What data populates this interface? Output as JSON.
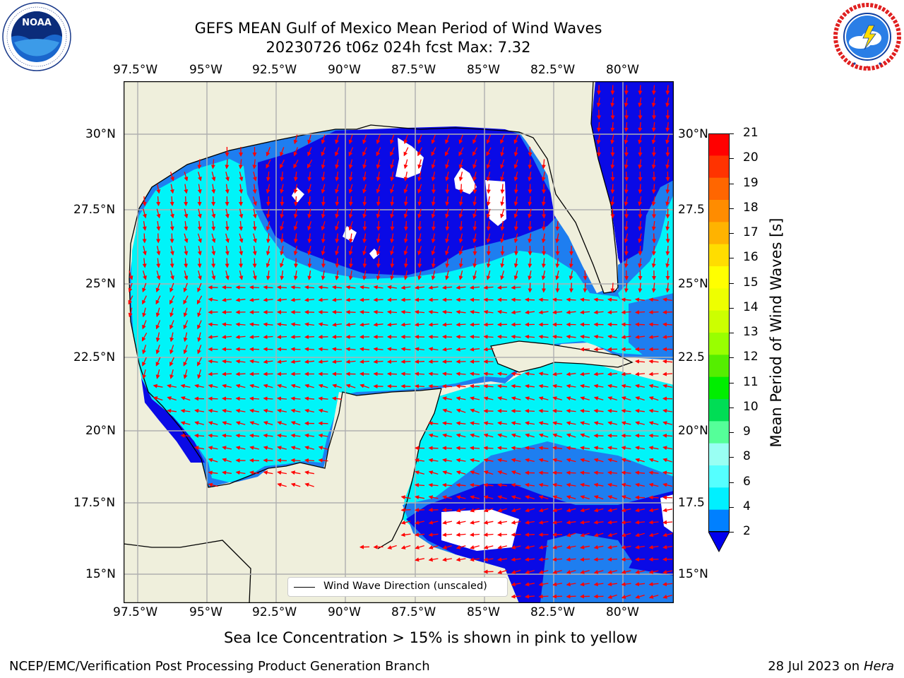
{
  "header": {
    "title_line1": "GEFS MEAN Gulf of Mexico Mean Period of Wind Waves",
    "title_line2": "20230726 t06z 024h fcst   Max: 7.32"
  },
  "logos": {
    "left": {
      "icon": "noaa-logo-icon",
      "text": "NOAA",
      "ring_text": "NATIONAL OCEANIC AND ATMOSPHERIC ADMINISTRATION · U.S. DEPARTMENT OF COMMERCE"
    },
    "right": {
      "icon": "nws-logo-icon",
      "ring_text": "NATIONAL WEATHER SERVICE"
    }
  },
  "map": {
    "lon_labels": [
      "97.5°W",
      "95°W",
      "92.5°W",
      "90°W",
      "87.5°W",
      "85°W",
      "82.5°W",
      "80°W"
    ],
    "lat_labels_left": [
      "30°N",
      "27.5°N",
      "25°N",
      "22.5°N",
      "20°N",
      "17.5°N",
      "15°N"
    ],
    "lat_labels_right": [
      "30°N",
      "27.5",
      "25°N",
      "22.5",
      "20°N",
      "17.5",
      "15°N"
    ],
    "legend_label": "Wind Wave Direction (unscaled)",
    "colors": {
      "land": "#efefdc",
      "ocean_blue": "#0a0ae6",
      "mid_blue": "#1e7ef0",
      "cyan": "#00f4f8",
      "arrow": "#ff0000",
      "grid": "#b0b0b0"
    }
  },
  "colorbar": {
    "label": "Mean Period of Wind Waves [s]",
    "ticks": [
      "21",
      "20",
      "19",
      "18",
      "17",
      "16",
      "15",
      "14",
      "13",
      "12",
      "11",
      "10",
      "9",
      "8",
      "6",
      "4",
      "2"
    ],
    "colors": [
      "#ff0000",
      "#ff3300",
      "#ff6600",
      "#ff8c00",
      "#ffb300",
      "#ffdd00",
      "#ffff00",
      "#eeff00",
      "#ccff00",
      "#99ff00",
      "#55ee00",
      "#00ee00",
      "#00dd55",
      "#55ff99",
      "#99fff3",
      "#55ffff",
      "#00f0ff",
      "#0080ff"
    ],
    "under_color": "#0000ee"
  },
  "notes": {
    "sea_ice": "Sea Ice Concentration > 15% is shown in pink to yellow",
    "footer_left": "NCEP/EMC/Verification Post Processing Product Generation Branch",
    "footer_right_prefix": "28 Jul 2023 on ",
    "footer_right_host": "Hera"
  }
}
